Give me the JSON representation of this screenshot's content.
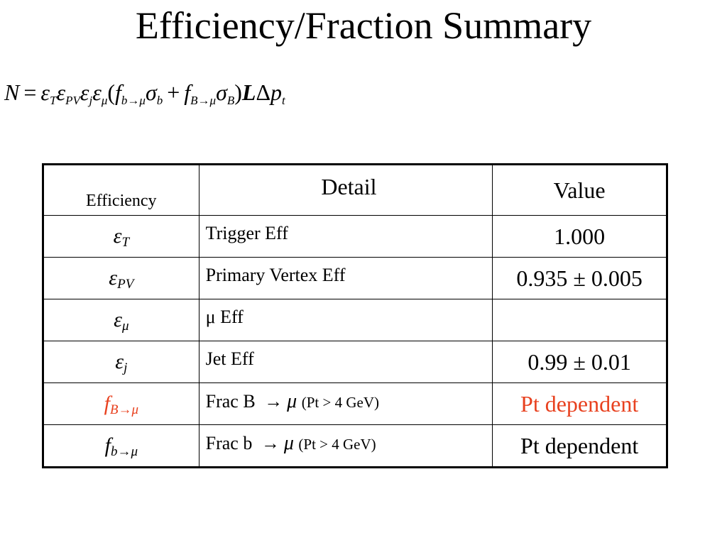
{
  "title": "Efficiency/Fraction Summary",
  "formula": {
    "lhs": "N",
    "eq": "=",
    "eps": "ε",
    "sub_T": "T",
    "sub_PV": "PV",
    "sub_j": "j",
    "sub_mu": "μ",
    "open": "(",
    "f": "f",
    "sub_b_mu": "b→μ",
    "sigma": "σ",
    "sub_b": "b",
    "plus": "+",
    "sub_B_mu": "B→μ",
    "sub_B": "B",
    "close": ")",
    "lumi": "L",
    "delta": "Δ",
    "p": "p",
    "sub_t": "t"
  },
  "table": {
    "headers": {
      "efficiency": "Efficiency",
      "detail": "Detail",
      "value": "Value"
    },
    "rows": [
      {
        "symbol": "ε",
        "sub": "T",
        "detail": "Trigger Eff",
        "value": "1.000",
        "highlight": false
      },
      {
        "symbol": "ε",
        "sub": "PV",
        "detail": "Primary Vertex Eff",
        "value": "0.935 ± 0.005",
        "highlight": false
      },
      {
        "symbol": "ε",
        "sub": "μ",
        "detail": "μ Eff",
        "value": "",
        "highlight": false
      },
      {
        "symbol": "ε",
        "sub": "j",
        "detail": "Jet Eff",
        "value": "0.99 ± 0.01",
        "highlight": false
      },
      {
        "symbol": "f",
        "sub": "B→μ",
        "detail_prefix": "Frac B",
        "detail_arrow": "→",
        "detail_mu": "μ",
        "detail_cond": "(Pt > 4 GeV)",
        "value": "Pt dependent",
        "highlight": true
      },
      {
        "symbol": "f",
        "sub": "b→μ",
        "detail_prefix": "Frac b",
        "detail_arrow": "→",
        "detail_mu": "μ",
        "detail_cond": "(Pt > 4 GeV)",
        "value": "Pt dependent",
        "highlight": false
      }
    ]
  },
  "colors": {
    "highlight": "#e8411f",
    "text": "#000000",
    "background": "#ffffff"
  }
}
